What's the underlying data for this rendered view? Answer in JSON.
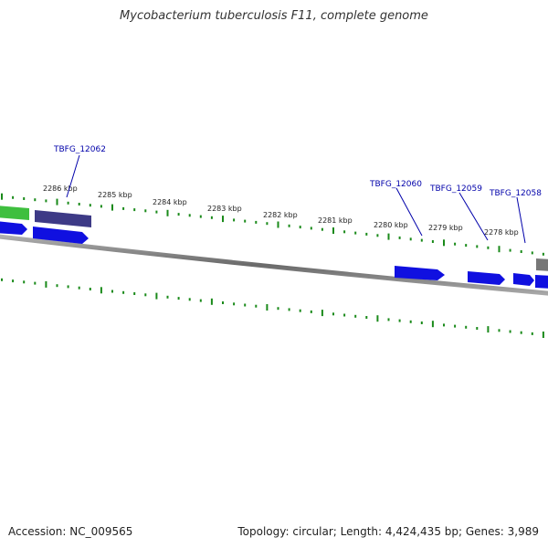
{
  "title": "Mycobacterium tuberculosis F11, complete genome",
  "accession": "Accession: NC_009565",
  "summary": "Topology: circular; Length: 4,424,435 bp; Genes: 3,989",
  "colors": {
    "backbone": "#7a7a7a",
    "tick": "#1a8a1a",
    "gene_blue": "#1010e0",
    "gene_purple": "#3d3a86",
    "gene_green": "#3fbf3f",
    "gene_gray": "#777777",
    "label_blue": "#0000aa"
  },
  "scale": {
    "unit": "kbp",
    "labels": [
      "2286 kbp",
      "2285 kbp",
      "2284 kbp",
      "2283 kbp",
      "2282 kbp",
      "2281 kbp",
      "2280 kbp",
      "2279 kbp",
      "2278 kbp"
    ]
  },
  "gene_labels": [
    "TBFG_12062",
    "TBFG_12060",
    "TBFG_12059",
    "TBFG_12058"
  ]
}
